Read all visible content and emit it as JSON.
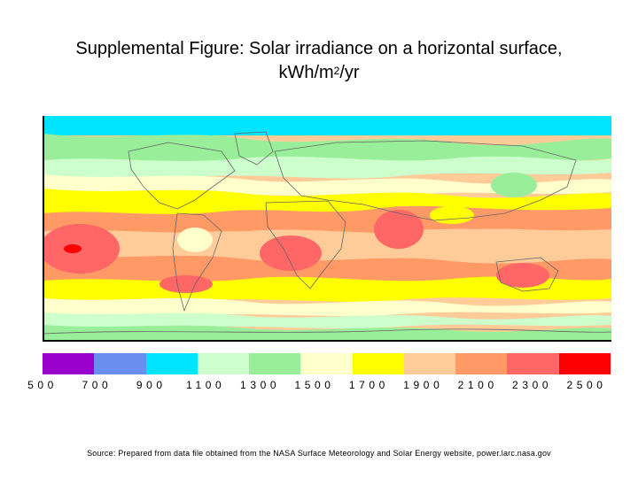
{
  "title": {
    "line1": "Supplemental Figure: Solar irradiance on a horizontal surface,",
    "line2_prefix": "kWh/m",
    "line2_sup": "2",
    "line2_suffix": "/yr"
  },
  "legend": {
    "colors": [
      "#9900cc",
      "#6a8ef0",
      "#00e5ff",
      "#ccffcc",
      "#99ee99",
      "#ffffcc",
      "#ffff00",
      "#ffcc99",
      "#ff9966",
      "#ff6666",
      "#ff0000"
    ],
    "labels": [
      "500",
      "700",
      "900",
      "1100",
      "1300",
      "1500",
      "1700",
      "1900",
      "2100",
      "2300",
      "2500"
    ]
  },
  "source": "Source: Prepared from data file obtained from the NASA Surface Meteorology and Solar Energy website, power.larc.nasa.gov"
}
